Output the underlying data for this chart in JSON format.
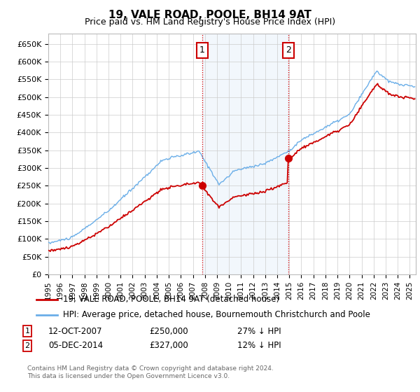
{
  "title": "19, VALE ROAD, POOLE, BH14 9AT",
  "subtitle": "Price paid vs. HM Land Registry's House Price Index (HPI)",
  "hpi_color": "#6aaee8",
  "price_color": "#cc0000",
  "vline_color": "#dd0000",
  "shade_color": "#cce0f5",
  "ylabel_ticks": [
    "£0",
    "£50K",
    "£100K",
    "£150K",
    "£200K",
    "£250K",
    "£300K",
    "£350K",
    "£400K",
    "£450K",
    "£500K",
    "£550K",
    "£600K",
    "£650K"
  ],
  "ytick_values": [
    0,
    50000,
    100000,
    150000,
    200000,
    250000,
    300000,
    350000,
    400000,
    450000,
    500000,
    550000,
    600000,
    650000
  ],
  "ylim": [
    0,
    680000
  ],
  "xlim_start": 1995.0,
  "xlim_end": 2025.5,
  "purchase1_x": 2007.78,
  "purchase1_y": 250000,
  "purchase1_label": "1",
  "purchase1_date": "12-OCT-2007",
  "purchase1_price": "£250,000",
  "purchase1_hpi": "27% ↓ HPI",
  "purchase2_x": 2014.92,
  "purchase2_y": 327000,
  "purchase2_label": "2",
  "purchase2_date": "05-DEC-2014",
  "purchase2_price": "£327,000",
  "purchase2_hpi": "12% ↓ HPI",
  "legend_line1": "19, VALE ROAD, POOLE, BH14 9AT (detached house)",
  "legend_line2": "HPI: Average price, detached house, Bournemouth Christchurch and Poole",
  "footer1": "Contains HM Land Registry data © Crown copyright and database right 2024.",
  "footer2": "This data is licensed under the Open Government Licence v3.0."
}
